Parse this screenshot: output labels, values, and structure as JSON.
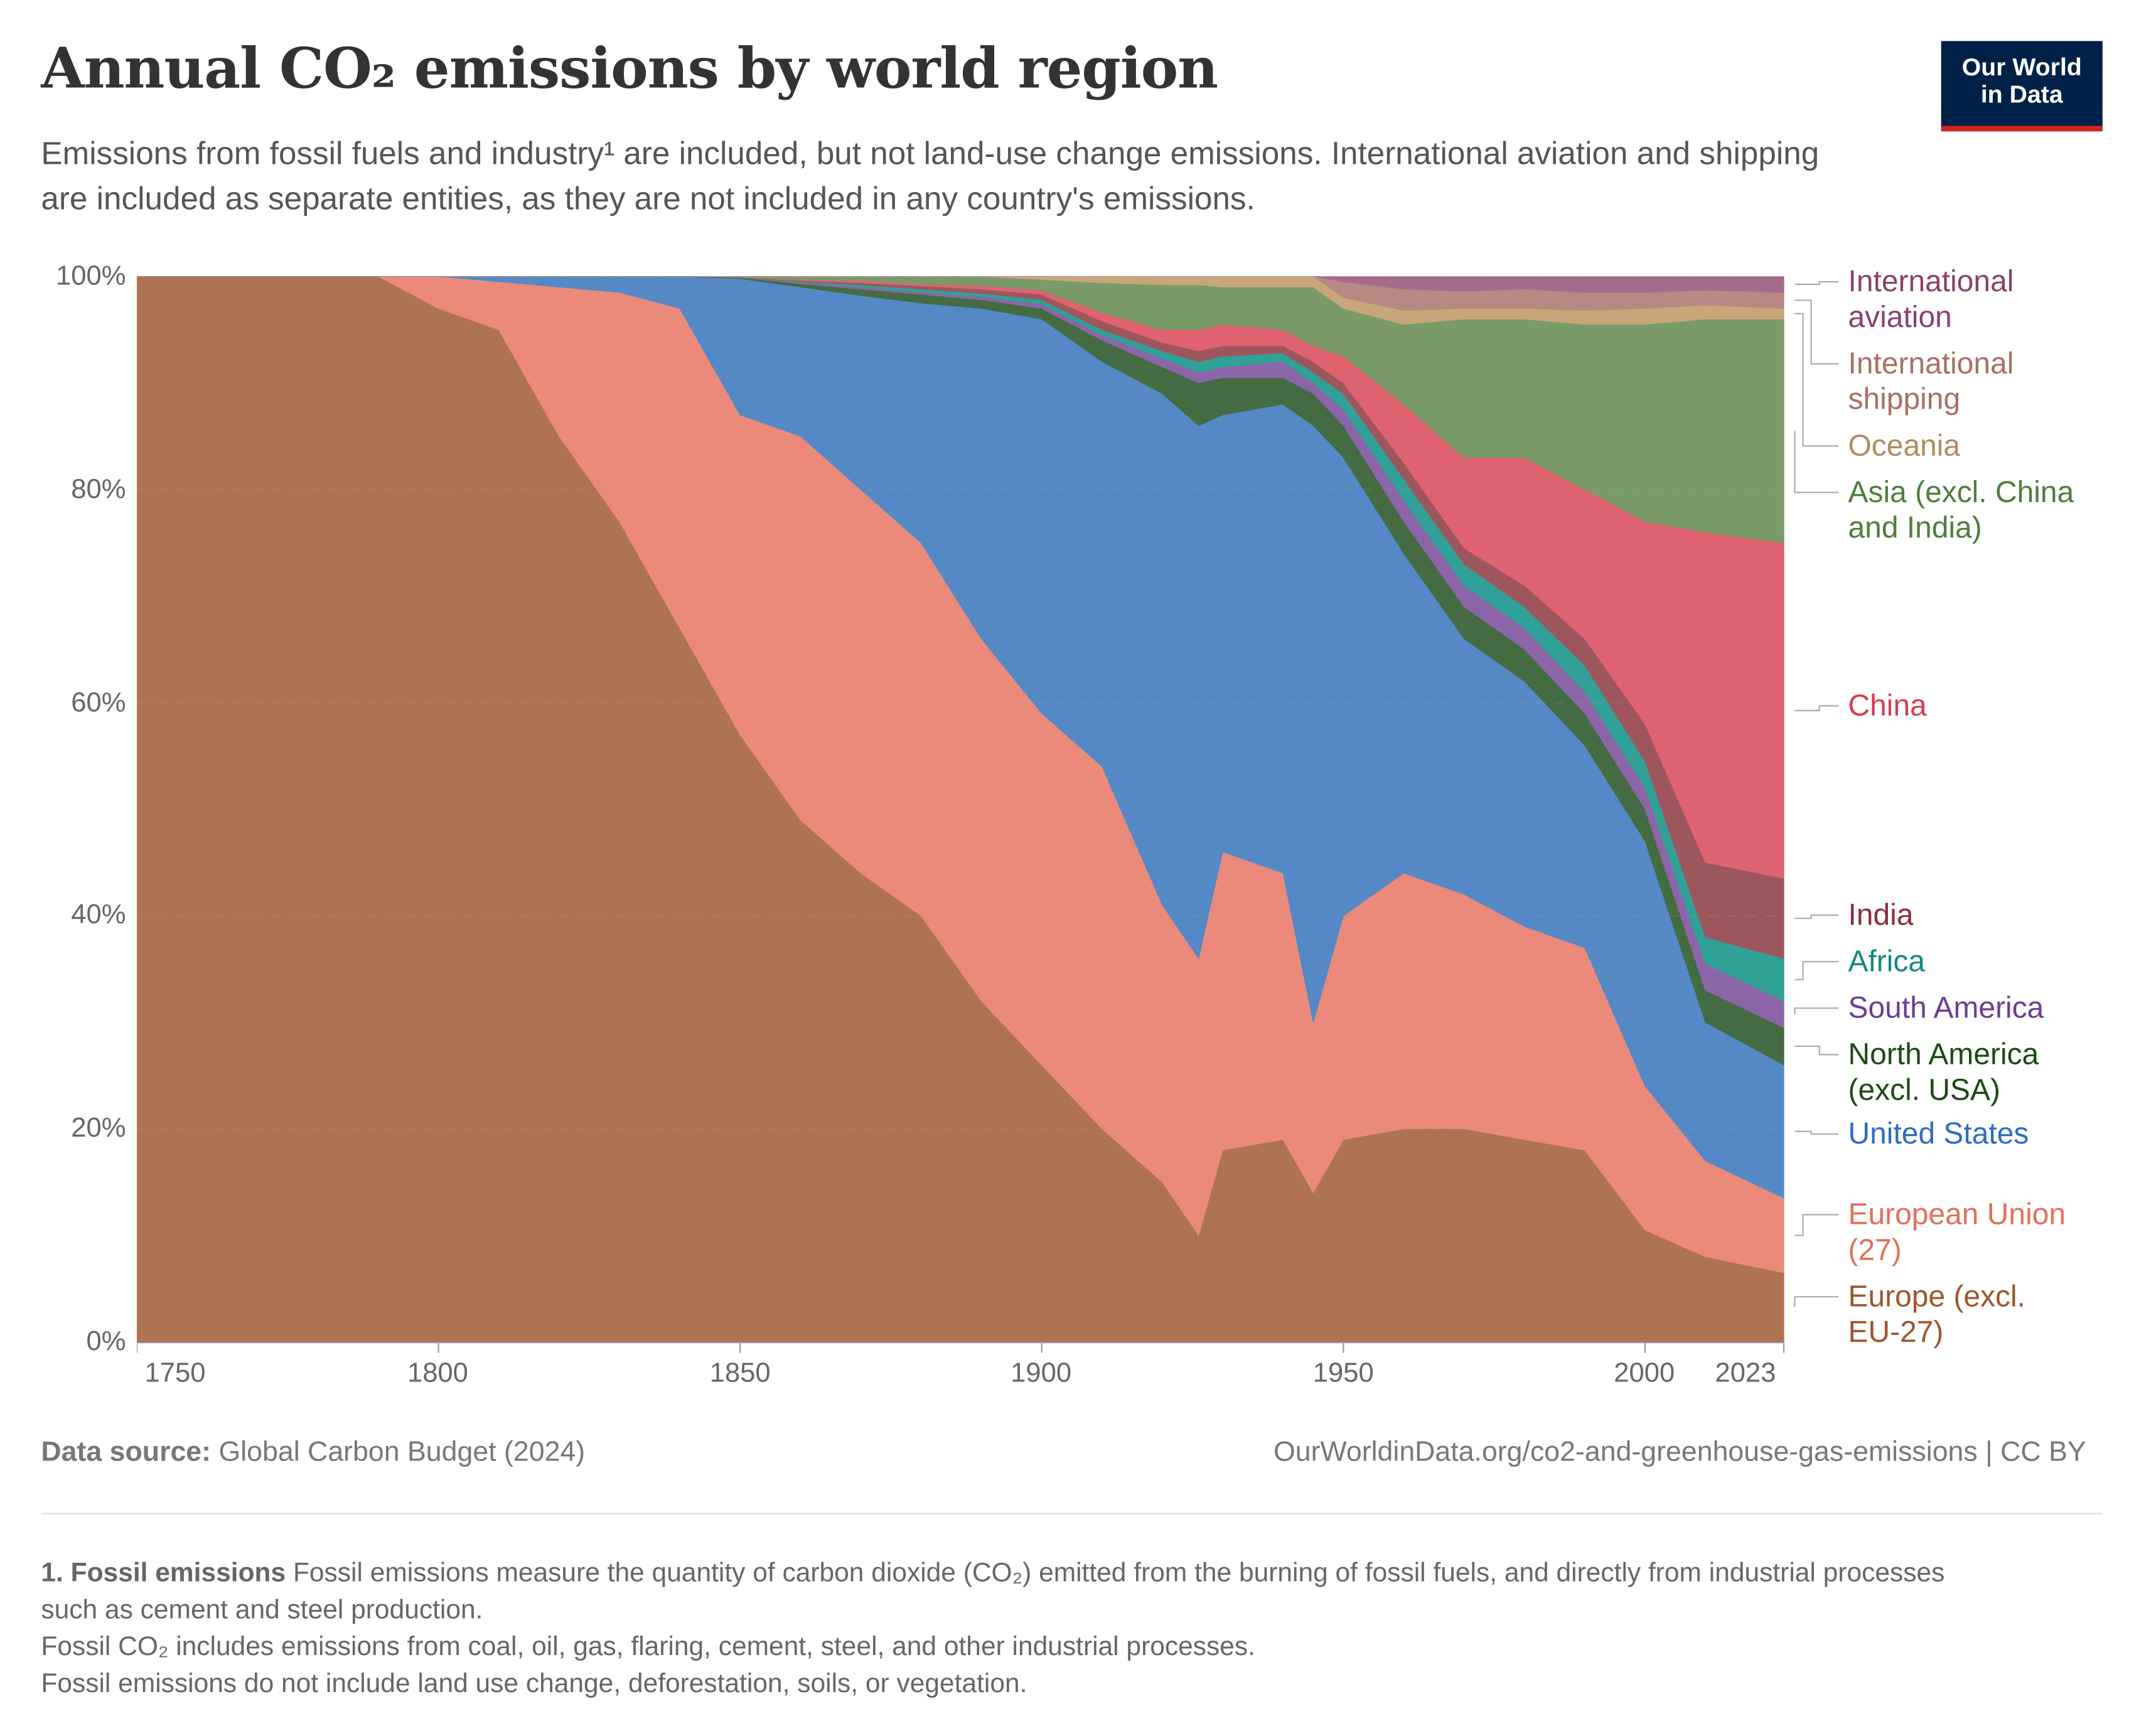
{
  "header": {
    "title": "Annual CO₂ emissions by world region",
    "subtitle": "Emissions from fossil fuels and industry¹ are included, but not land-use change emissions. International aviation and shipping are included as separate entities, as they are not included in any country's emissions.",
    "logo_line1": "Our World",
    "logo_line2": "in Data"
  },
  "footer": {
    "source_label": "Data source:",
    "source_value": "Global Carbon Budget (2024)",
    "url": "OurWorldinData.org/co2-and-greenhouse-gas-emissions | CC BY",
    "note_title": "1. Fossil emissions",
    "note_1": "Fossil emissions measure the quantity of carbon dioxide (CO₂) emitted from the burning of fossil fuels, and directly from industrial processes such as cement and steel production.",
    "note_2": "Fossil CO₂ includes emissions from coal, oil, gas, flaring, cement, steel, and other industrial processes.",
    "note_3": "Fossil emissions do not include land use change, deforestation, soils, or vegetation."
  },
  "chart_data": {
    "type": "area",
    "stacked": true,
    "relative": true,
    "title": "Annual CO₂ emissions by world region",
    "xlabel": "",
    "ylabel": "",
    "xlim": [
      1750,
      2023
    ],
    "ylim": [
      0,
      100
    ],
    "yticks": [
      "0%",
      "20%",
      "40%",
      "60%",
      "80%",
      "100%"
    ],
    "ytick_values": [
      0,
      20,
      40,
      60,
      80,
      100
    ],
    "xticks": [
      "1750",
      "1800",
      "1850",
      "1900",
      "1950",
      "2000",
      "2023"
    ],
    "xtick_values": [
      1750,
      1800,
      1850,
      1900,
      1950,
      2000,
      2023
    ],
    "grid": "horizontal dashed",
    "legend_placement": "right (end labels)",
    "x": [
      1750,
      1790,
      1800,
      1810,
      1820,
      1830,
      1840,
      1850,
      1860,
      1870,
      1880,
      1890,
      1900,
      1910,
      1920,
      1926,
      1930,
      1940,
      1945,
      1950,
      1960,
      1970,
      1980,
      1990,
      2000,
      2010,
      2023
    ],
    "series": [
      {
        "name": "Europe (excl. EU-27)",
        "label_lines": [
          "Europe (excl.",
          "EU-27)"
        ],
        "color": "#ae7452",
        "label_color": "#a0552d",
        "values": [
          100,
          100,
          97,
          95,
          85,
          77,
          67,
          57,
          49,
          44,
          40,
          32,
          26,
          20,
          15,
          10,
          18,
          19,
          14,
          19,
          20,
          20,
          19,
          18,
          10.5,
          8,
          6.5
        ]
      },
      {
        "name": "European Union (27)",
        "label_lines": [
          "European Union",
          "(27)"
        ],
        "color": "#eb8a7b",
        "label_color": "#e2705c",
        "values": [
          0,
          0,
          3,
          4.5,
          14,
          21.5,
          30,
          30,
          36,
          36,
          35,
          34,
          33,
          34,
          26,
          26,
          28,
          25,
          16,
          21,
          24,
          22,
          20,
          19,
          13.5,
          9,
          7
        ]
      },
      {
        "name": "United States",
        "label_lines": [
          "United States"
        ],
        "color": "#5489c6",
        "label_color": "#2f6cc0",
        "values": [
          0,
          0,
          0,
          0.5,
          1,
          1.5,
          3,
          12.8,
          14,
          18.2,
          22.5,
          31,
          37,
          38,
          48,
          50,
          41,
          44,
          56,
          43,
          30,
          24,
          23,
          19,
          23,
          13,
          12.5
        ]
      },
      {
        "name": "North America (excl. USA)",
        "label_lines": [
          "North America",
          "(excl. USA)"
        ],
        "color": "#446b41",
        "label_color": "#1d4a15",
        "values": [
          0,
          0,
          0,
          0,
          0,
          0,
          0,
          0.1,
          0.3,
          0.6,
          0.8,
          0.8,
          1,
          2,
          2.5,
          4,
          3.5,
          2.5,
          3,
          3,
          3,
          3,
          3,
          3,
          3,
          3,
          3.5
        ]
      },
      {
        "name": "South America",
        "label_lines": [
          "South America"
        ],
        "color": "#8b65a8",
        "label_color": "#6c3d91",
        "values": [
          0,
          0,
          0,
          0,
          0,
          0,
          0,
          0,
          0.1,
          0.2,
          0.2,
          0.3,
          0.4,
          0.5,
          0.8,
          1,
          1,
          1.5,
          1,
          1.5,
          2,
          2,
          2,
          2,
          2,
          2.5,
          2.5
        ]
      },
      {
        "name": "Africa",
        "label_lines": [
          "Africa"
        ],
        "color": "#31a097",
        "label_color": "#14897f",
        "values": [
          0,
          0,
          0,
          0,
          0,
          0,
          0,
          0,
          0.1,
          0.2,
          0.3,
          0.3,
          0.4,
          0.5,
          0.7,
          1,
          1,
          0.8,
          1,
          1.5,
          2,
          2,
          2,
          2.5,
          2.5,
          2.5,
          4
        ]
      },
      {
        "name": "India",
        "label_lines": [
          "India"
        ],
        "color": "#9e565d",
        "label_color": "#8c2d3e",
        "values": [
          0,
          0,
          0,
          0,
          0,
          0,
          0,
          0,
          0.1,
          0.2,
          0.3,
          0.4,
          0.5,
          0.8,
          0.8,
          1,
          1,
          0.7,
          1,
          1,
          1.5,
          1.5,
          2,
          2.5,
          3.5,
          7,
          7.5
        ]
      },
      {
        "name": "China",
        "label_lines": [
          "China"
        ],
        "color": "#e06372",
        "label_color": "#d73c50",
        "values": [
          0,
          0,
          0,
          0,
          0,
          0,
          0,
          0,
          0.1,
          0.2,
          0.2,
          0.3,
          0.4,
          0.8,
          1.2,
          2,
          2,
          1.5,
          1.5,
          2.5,
          5.5,
          8.5,
          12,
          14,
          19,
          31,
          31.5
        ]
      },
      {
        "name": "Asia (excl. China and India)",
        "label_lines": [
          "Asia (excl. China",
          "and India)"
        ],
        "color": "#7a9a6a",
        "label_color": "#4f7d3c",
        "values": [
          0,
          0,
          0,
          0,
          0,
          0,
          0,
          0.1,
          0.3,
          0.4,
          0.7,
          0.9,
          1,
          2.8,
          4.2,
          4.2,
          3.5,
          4,
          5.5,
          4.5,
          7.5,
          13,
          13,
          15.5,
          18.5,
          20,
          21
        ]
      },
      {
        "name": "Oceania",
        "label_lines": [
          "Oceania"
        ],
        "color": "#c9a57a",
        "label_color": "#b28b5e",
        "values": [
          0,
          0,
          0,
          0,
          0,
          0,
          0,
          0,
          0,
          0,
          0,
          0,
          0.3,
          0.6,
          0.8,
          0.8,
          1,
          1,
          1,
          1,
          1.3,
          1,
          1,
          1.3,
          1.5,
          1.3,
          1
        ]
      },
      {
        "name": "International shipping",
        "label_lines": [
          "International",
          "shipping"
        ],
        "color": "#b68a82",
        "label_color": "#a96e66",
        "values": [
          0,
          0,
          0,
          0,
          0,
          0,
          0,
          0,
          0,
          0,
          0,
          0,
          0,
          0,
          0,
          0,
          0,
          0,
          0,
          1.5,
          2,
          1.6,
          1.8,
          1.7,
          1.5,
          1.4,
          1.5
        ]
      },
      {
        "name": "International aviation",
        "label_lines": [
          "International",
          "aviation"
        ],
        "color": "#a46c8c",
        "label_color": "#8c3f6d",
        "values": [
          0,
          0,
          0,
          0,
          0,
          0,
          0,
          0,
          0,
          0,
          0,
          0,
          0,
          0,
          0,
          0,
          0,
          0,
          0,
          0.5,
          1.2,
          1.4,
          1.2,
          1.5,
          1.5,
          1.3,
          1.5
        ]
      }
    ]
  }
}
